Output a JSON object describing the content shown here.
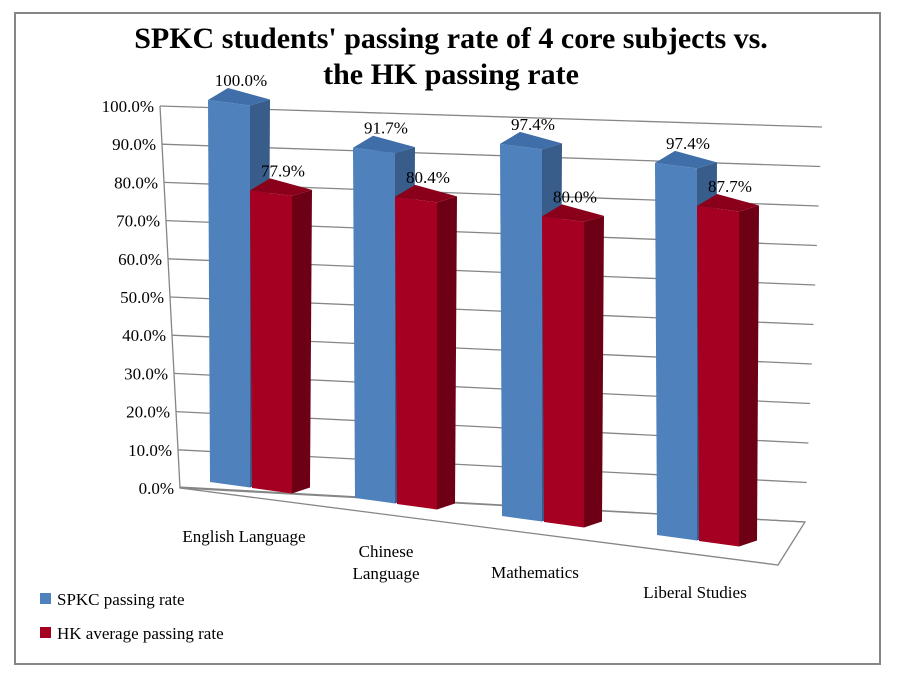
{
  "chart_data": {
    "type": "bar",
    "variant": "3d-clustered-column",
    "title": [
      "SPKC students' passing rate of 4 core subjects vs.",
      "the HK passing rate"
    ],
    "categories": [
      "English Language",
      "Chinese Language",
      "Mathematics",
      "Liberal Studies"
    ],
    "category_label_lines": [
      [
        "English Language"
      ],
      [
        "Chinese",
        "Language"
      ],
      [
        "Mathematics"
      ],
      [
        "Liberal Studies"
      ]
    ],
    "series": [
      {
        "name": "SPKC passing rate",
        "color": "#4f81bd",
        "side_color": "#385d8a",
        "top_color": "#3f6ea8",
        "values": [
          100.0,
          91.7,
          97.4,
          97.4
        ],
        "labels": [
          "100.0%",
          "91.7%",
          "97.4%",
          "97.4%"
        ]
      },
      {
        "name": "HK average passing rate",
        "color": "#a50021",
        "side_color": "#6e0016",
        "top_color": "#8a001b",
        "values": [
          77.9,
          80.4,
          80.0,
          87.7
        ],
        "labels": [
          "77.9%",
          "80.4%",
          "80.0%",
          "87.7%"
        ]
      }
    ],
    "y_ticks": [
      "0.0%",
      "10.0%",
      "20.0%",
      "30.0%",
      "40.0%",
      "50.0%",
      "60.0%",
      "70.0%",
      "80.0%",
      "90.0%",
      "100.0%"
    ],
    "ylim": [
      0,
      100
    ],
    "grid": true,
    "legend_position": "bottom-left"
  }
}
